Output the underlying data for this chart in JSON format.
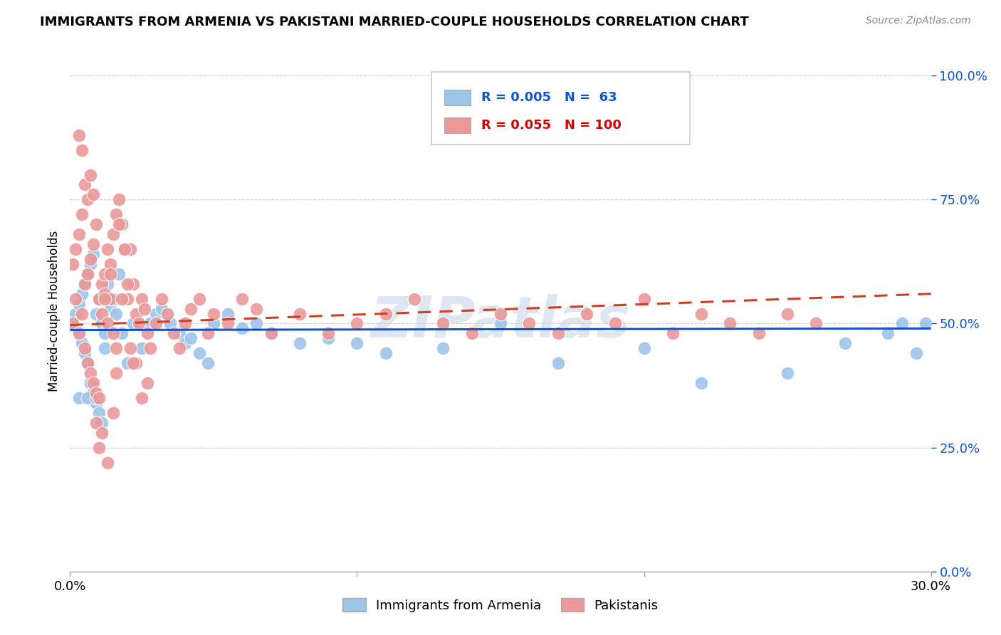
{
  "title": "IMMIGRANTS FROM ARMENIA VS PAKISTANI MARRIED-COUPLE HOUSEHOLDS CORRELATION CHART",
  "source": "Source: ZipAtlas.com",
  "ylabel": "Married-couple Households",
  "yticks_labels": [
    "0.0%",
    "25.0%",
    "50.0%",
    "75.0%",
    "100.0%"
  ],
  "ytick_vals": [
    0.0,
    0.25,
    0.5,
    0.75,
    1.0
  ],
  "xlim": [
    0.0,
    0.3
  ],
  "ylim": [
    0.0,
    1.05
  ],
  "legend_label1": "Immigrants from Armenia",
  "legend_label2": "Pakistanis",
  "R1": "0.005",
  "N1": " 63",
  "R2": "0.055",
  "N2": "100",
  "color_blue": "#9fc5e8",
  "color_pink": "#ea9999",
  "color_blue_text": "#1155cc",
  "color_pink_text": "#cc0000",
  "color_blue_line": "#1155cc",
  "color_pink_line": "#cc4125",
  "watermark": "ZIPatlas",
  "blue_scatter_x": [
    0.001,
    0.002,
    0.003,
    0.003,
    0.004,
    0.004,
    0.005,
    0.005,
    0.006,
    0.006,
    0.007,
    0.007,
    0.008,
    0.008,
    0.009,
    0.009,
    0.01,
    0.01,
    0.011,
    0.011,
    0.012,
    0.013,
    0.014,
    0.015,
    0.016,
    0.017,
    0.018,
    0.02,
    0.022,
    0.025,
    0.028,
    0.03,
    0.032,
    0.035,
    0.038,
    0.04,
    0.042,
    0.045,
    0.048,
    0.05,
    0.055,
    0.06,
    0.065,
    0.07,
    0.08,
    0.09,
    0.1,
    0.11,
    0.13,
    0.15,
    0.17,
    0.2,
    0.22,
    0.25,
    0.27,
    0.285,
    0.29,
    0.295,
    0.298,
    0.003,
    0.006,
    0.009,
    0.012
  ],
  "blue_scatter_y": [
    0.5,
    0.52,
    0.48,
    0.54,
    0.46,
    0.56,
    0.44,
    0.58,
    0.42,
    0.6,
    0.38,
    0.62,
    0.36,
    0.64,
    0.34,
    0.52,
    0.32,
    0.55,
    0.3,
    0.5,
    0.45,
    0.58,
    0.53,
    0.55,
    0.52,
    0.6,
    0.48,
    0.42,
    0.5,
    0.45,
    0.5,
    0.52,
    0.53,
    0.5,
    0.48,
    0.46,
    0.47,
    0.44,
    0.42,
    0.5,
    0.52,
    0.49,
    0.5,
    0.48,
    0.46,
    0.47,
    0.46,
    0.44,
    0.45,
    0.5,
    0.42,
    0.45,
    0.38,
    0.4,
    0.46,
    0.48,
    0.5,
    0.44,
    0.5,
    0.35,
    0.35,
    0.35,
    0.48
  ],
  "pink_scatter_x": [
    0.001,
    0.001,
    0.002,
    0.002,
    0.003,
    0.003,
    0.004,
    0.004,
    0.005,
    0.005,
    0.006,
    0.006,
    0.007,
    0.007,
    0.008,
    0.008,
    0.009,
    0.009,
    0.01,
    0.01,
    0.011,
    0.011,
    0.012,
    0.012,
    0.013,
    0.013,
    0.014,
    0.014,
    0.015,
    0.015,
    0.016,
    0.016,
    0.017,
    0.018,
    0.019,
    0.02,
    0.021,
    0.022,
    0.023,
    0.024,
    0.025,
    0.026,
    0.027,
    0.028,
    0.03,
    0.032,
    0.034,
    0.036,
    0.038,
    0.04,
    0.042,
    0.045,
    0.048,
    0.05,
    0.055,
    0.06,
    0.065,
    0.07,
    0.08,
    0.09,
    0.1,
    0.11,
    0.12,
    0.13,
    0.14,
    0.15,
    0.16,
    0.17,
    0.18,
    0.19,
    0.2,
    0.21,
    0.22,
    0.23,
    0.24,
    0.25,
    0.26,
    0.003,
    0.005,
    0.007,
    0.009,
    0.011,
    0.013,
    0.015,
    0.017,
    0.019,
    0.021,
    0.023,
    0.025,
    0.027,
    0.004,
    0.006,
    0.008,
    0.01,
    0.012,
    0.014,
    0.016,
    0.018,
    0.02,
    0.022
  ],
  "pink_scatter_y": [
    0.5,
    0.62,
    0.55,
    0.65,
    0.48,
    0.68,
    0.52,
    0.72,
    0.45,
    0.58,
    0.42,
    0.6,
    0.4,
    0.63,
    0.38,
    0.66,
    0.36,
    0.7,
    0.35,
    0.55,
    0.58,
    0.52,
    0.6,
    0.56,
    0.65,
    0.5,
    0.62,
    0.55,
    0.68,
    0.48,
    0.72,
    0.45,
    0.75,
    0.7,
    0.65,
    0.55,
    0.65,
    0.58,
    0.52,
    0.5,
    0.55,
    0.53,
    0.48,
    0.45,
    0.5,
    0.55,
    0.52,
    0.48,
    0.45,
    0.5,
    0.53,
    0.55,
    0.48,
    0.52,
    0.5,
    0.55,
    0.53,
    0.48,
    0.52,
    0.48,
    0.5,
    0.52,
    0.55,
    0.5,
    0.48,
    0.52,
    0.5,
    0.48,
    0.52,
    0.5,
    0.55,
    0.48,
    0.52,
    0.5,
    0.48,
    0.52,
    0.5,
    0.88,
    0.78,
    0.8,
    0.3,
    0.28,
    0.22,
    0.32,
    0.7,
    0.65,
    0.45,
    0.42,
    0.35,
    0.38,
    0.85,
    0.75,
    0.76,
    0.25,
    0.55,
    0.6,
    0.4,
    0.55,
    0.58,
    0.42
  ]
}
